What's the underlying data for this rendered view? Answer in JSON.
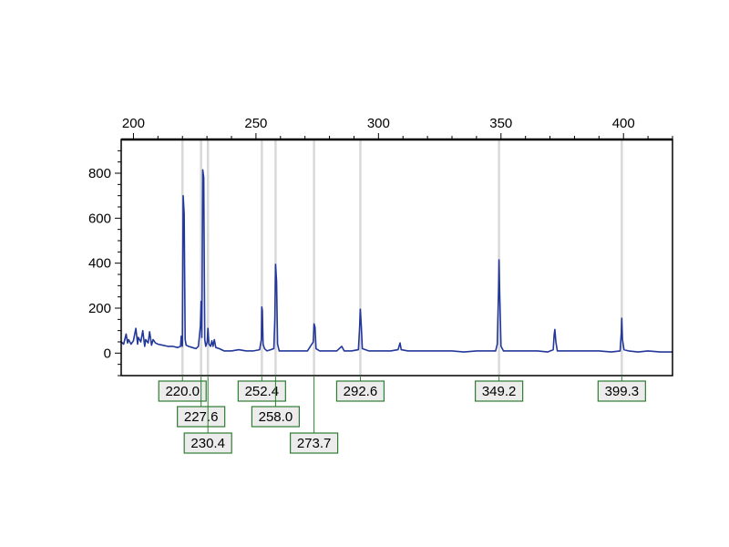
{
  "colors": {
    "trace": "#23389a",
    "marker_line": "#d9d9d9",
    "label_border": "#2e7d32",
    "label_fill": "#ececec",
    "label_leader": "#2e7d32",
    "frame": "#000000"
  },
  "chart_data": {
    "type": "line",
    "title": "",
    "xlabel": "",
    "ylabel": "",
    "x_axis_position": "top",
    "xlim": [
      195,
      420
    ],
    "ylim": [
      -100,
      950
    ],
    "x_ticks": [
      200,
      250,
      300,
      350,
      400
    ],
    "y_ticks": [
      0,
      200,
      400,
      600,
      800
    ],
    "grid": false,
    "legend": "none",
    "series": [
      {
        "points": [
          [
            195,
            50
          ],
          [
            196,
            40
          ],
          [
            197,
            85
          ],
          [
            197.6,
            45
          ],
          [
            198,
            60
          ],
          [
            199,
            40
          ],
          [
            200,
            55
          ],
          [
            201,
            110
          ],
          [
            201.7,
            40
          ],
          [
            202,
            70
          ],
          [
            203,
            50
          ],
          [
            203.8,
            100
          ],
          [
            204.6,
            30
          ],
          [
            205,
            60
          ],
          [
            206,
            45
          ],
          [
            206.6,
            95
          ],
          [
            207.4,
            35
          ],
          [
            208,
            60
          ],
          [
            209,
            45
          ],
          [
            210,
            40
          ],
          [
            212,
            35
          ],
          [
            214,
            30
          ],
          [
            216,
            30
          ],
          [
            218,
            25
          ],
          [
            219.2,
            30
          ],
          [
            219.5,
            75
          ],
          [
            219.9,
            30
          ],
          [
            220.0,
            40
          ],
          [
            220.3,
            700
          ],
          [
            220.7,
            620
          ],
          [
            221.1,
            60
          ],
          [
            221.5,
            35
          ],
          [
            222.5,
            30
          ],
          [
            224,
            25
          ],
          [
            225.5,
            20
          ],
          [
            226.5,
            30
          ],
          [
            227.3,
            120
          ],
          [
            227.6,
            230
          ],
          [
            227.9,
            70
          ],
          [
            228.3,
            815
          ],
          [
            228.7,
            780
          ],
          [
            229.1,
            60
          ],
          [
            229.5,
            30
          ],
          [
            230.1,
            50
          ],
          [
            230.4,
            110
          ],
          [
            230.8,
            40
          ],
          [
            231.5,
            30
          ],
          [
            232,
            55
          ],
          [
            232.5,
            30
          ],
          [
            233,
            60
          ],
          [
            233.6,
            25
          ],
          [
            235,
            20
          ],
          [
            237,
            10
          ],
          [
            240,
            10
          ],
          [
            243,
            15
          ],
          [
            246,
            10
          ],
          [
            249,
            10
          ],
          [
            251.5,
            15
          ],
          [
            252.2,
            60
          ],
          [
            252.4,
            205
          ],
          [
            252.6,
            190
          ],
          [
            252.9,
            40
          ],
          [
            253.5,
            20
          ],
          [
            254.5,
            10
          ],
          [
            256,
            15
          ],
          [
            257.3,
            20
          ],
          [
            257.7,
            150
          ],
          [
            258.0,
            395
          ],
          [
            258.4,
            320
          ],
          [
            258.8,
            40
          ],
          [
            259.5,
            10
          ],
          [
            262,
            10
          ],
          [
            265,
            10
          ],
          [
            268,
            10
          ],
          [
            271,
            10
          ],
          [
            273.4,
            50
          ],
          [
            273.7,
            130
          ],
          [
            274.1,
            115
          ],
          [
            274.5,
            20
          ],
          [
            276,
            10
          ],
          [
            280,
            10
          ],
          [
            283,
            10
          ],
          [
            285,
            30
          ],
          [
            286,
            10
          ],
          [
            289,
            10
          ],
          [
            291.8,
            15
          ],
          [
            292.3,
            110
          ],
          [
            292.6,
            195
          ],
          [
            293.0,
            120
          ],
          [
            293.4,
            20
          ],
          [
            296,
            10
          ],
          [
            300,
            10
          ],
          [
            305,
            10
          ],
          [
            308,
            15
          ],
          [
            308.8,
            45
          ],
          [
            309.3,
            15
          ],
          [
            312,
            10
          ],
          [
            316,
            10
          ],
          [
            320,
            10
          ],
          [
            325,
            10
          ],
          [
            330,
            10
          ],
          [
            335,
            5
          ],
          [
            340,
            10
          ],
          [
            345,
            10
          ],
          [
            347.8,
            10
          ],
          [
            348.5,
            40
          ],
          [
            349.0,
            280
          ],
          [
            349.2,
            415
          ],
          [
            349.5,
            260
          ],
          [
            350.0,
            30
          ],
          [
            351,
            10
          ],
          [
            355,
            10
          ],
          [
            360,
            10
          ],
          [
            365,
            10
          ],
          [
            369,
            5
          ],
          [
            371.3,
            15
          ],
          [
            371.7,
            80
          ],
          [
            372.0,
            105
          ],
          [
            372.4,
            50
          ],
          [
            373,
            10
          ],
          [
            376,
            10
          ],
          [
            380,
            10
          ],
          [
            385,
            10
          ],
          [
            390,
            10
          ],
          [
            395,
            5
          ],
          [
            398.6,
            10
          ],
          [
            399.1,
            90
          ],
          [
            399.3,
            155
          ],
          [
            399.6,
            60
          ],
          [
            400.2,
            15
          ],
          [
            402,
            10
          ],
          [
            406,
            5
          ],
          [
            410,
            10
          ],
          [
            415,
            5
          ],
          [
            420,
            5
          ]
        ]
      }
    ],
    "peak_labels": [
      {
        "x": 220.0,
        "text": "220.0",
        "row": 0
      },
      {
        "x": 227.6,
        "text": "227.6",
        "row": 1
      },
      {
        "x": 230.4,
        "text": "230.4",
        "row": 2
      },
      {
        "x": 252.4,
        "text": "252.4",
        "row": 0
      },
      {
        "x": 258.0,
        "text": "258.0",
        "row": 1
      },
      {
        "x": 273.7,
        "text": "273.7",
        "row": 2
      },
      {
        "x": 292.6,
        "text": "292.6",
        "row": 0
      },
      {
        "x": 349.2,
        "text": "349.2",
        "row": 0
      },
      {
        "x": 399.3,
        "text": "399.3",
        "row": 0
      }
    ]
  }
}
